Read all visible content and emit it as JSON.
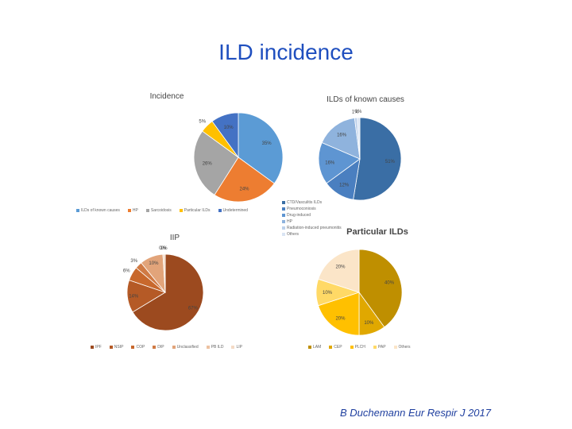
{
  "slide": {
    "title": "ILD incidence",
    "citation": "B Duchemann Eur Respir J 2017"
  },
  "chart_data": [
    {
      "type": "pie",
      "title": "Incidence",
      "categories": [
        "ILDs of known causes",
        "HP",
        "Sarcoidosis",
        "Particular ILDs",
        "Undetermined"
      ],
      "values": [
        35,
        24,
        26,
        5,
        10
      ],
      "labels": [
        "35%",
        "24%",
        "26%",
        "5%",
        "10%"
      ],
      "colors": [
        "#5b9bd5",
        "#ed7d31",
        "#a5a5a5",
        "#ffc000",
        "#4472c4"
      ]
    },
    {
      "type": "pie",
      "title": "ILDs of known causes",
      "categories": [
        "CTD/Vasculitis ILDs",
        "Pneumoconiosis",
        "Drug-induced",
        "HP",
        "Radiation-induced pneumonitis",
        "Others"
      ],
      "values": [
        51,
        12,
        16,
        16,
        1,
        1
      ],
      "labels": [
        "51%",
        "12%",
        "16%",
        "16%",
        "1%",
        "1%"
      ],
      "colors": [
        "#3a6ea5",
        "#4a7fc0",
        "#5e95d2",
        "#8fb3dd",
        "#bcd0ea",
        "#d9e4f3"
      ]
    },
    {
      "type": "pie",
      "title": "IIP",
      "categories": [
        "IPF",
        "NSIP",
        "COP",
        "DIP",
        "Unclassified",
        "PB ILD",
        "LIP"
      ],
      "values": [
        67,
        14,
        6,
        3,
        10,
        0,
        1
      ],
      "labels": [
        "67%",
        "14%",
        "6%",
        "3%",
        "10%",
        "0%",
        "1%"
      ],
      "colors": [
        "#9c4a1f",
        "#b55a26",
        "#c8682c",
        "#d07a44",
        "#e2a47a",
        "#edc2a1",
        "#f4dac5"
      ]
    },
    {
      "type": "pie",
      "title": "Particular ILDs",
      "categories": [
        "LAM",
        "CEP",
        "PLCH",
        "PAP",
        "Others"
      ],
      "values": [
        40,
        10,
        20,
        10,
        20
      ],
      "labels": [
        "40%",
        "10%",
        "20%",
        "10%",
        "20%"
      ],
      "colors": [
        "#bf8f00",
        "#e0a800",
        "#ffc000",
        "#ffd966",
        "#fbe5c8"
      ]
    }
  ]
}
